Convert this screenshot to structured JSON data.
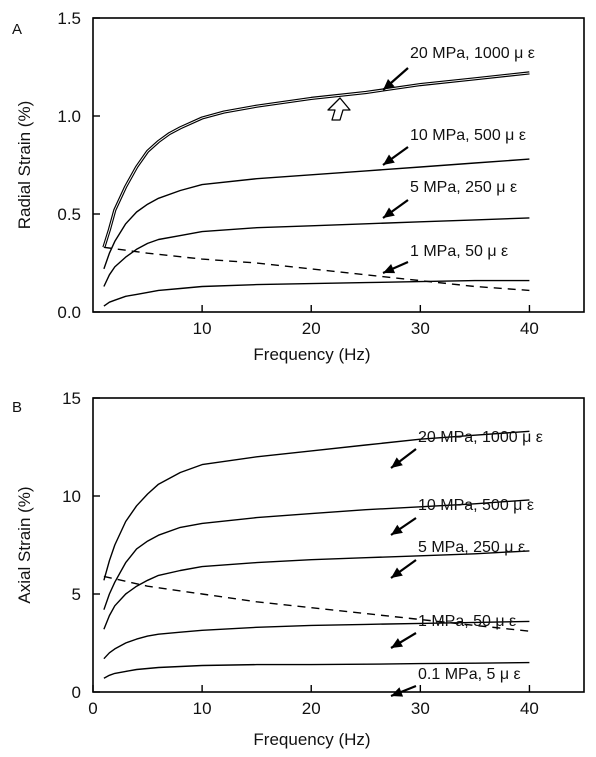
{
  "chart_data": [
    {
      "panel_label": "A",
      "type": "line",
      "xlabel": "Frequency (Hz)",
      "ylabel": "Radial Strain (%)",
      "xlim": [
        0,
        45
      ],
      "ylim": [
        0,
        1.5
      ],
      "x_ticks": [
        "10",
        "20",
        "30",
        "40"
      ],
      "x_tick_values": [
        10,
        20,
        30,
        40
      ],
      "y_ticks": [
        "0.0",
        "0.5",
        "1.0",
        "1.5"
      ],
      "y_tick_values": [
        0,
        0.5,
        1.0,
        1.5
      ],
      "grid": false,
      "series": [
        {
          "name": "20 MPa, 1000 μ ε",
          "style": "solid-bold",
          "x": [
            1,
            1.5,
            2,
            3,
            4,
            5,
            6,
            7,
            8,
            10,
            12,
            15,
            20,
            25,
            30,
            35,
            40
          ],
          "y": [
            0.33,
            0.42,
            0.52,
            0.64,
            0.74,
            0.82,
            0.87,
            0.91,
            0.94,
            0.99,
            1.02,
            1.05,
            1.09,
            1.12,
            1.16,
            1.19,
            1.22
          ]
        },
        {
          "name": "10 MPa, 500 μ ε",
          "style": "solid",
          "x": [
            1,
            1.5,
            2,
            3,
            4,
            5,
            6,
            8,
            10,
            15,
            20,
            25,
            30,
            35,
            40
          ],
          "y": [
            0.22,
            0.3,
            0.36,
            0.45,
            0.51,
            0.55,
            0.58,
            0.62,
            0.65,
            0.68,
            0.7,
            0.72,
            0.74,
            0.76,
            0.78
          ]
        },
        {
          "name": "5 MPa, 250 μ ε",
          "style": "solid",
          "x": [
            1,
            1.5,
            2,
            3,
            4,
            5,
            6,
            8,
            10,
            15,
            20,
            25,
            30,
            35,
            40
          ],
          "y": [
            0.13,
            0.19,
            0.23,
            0.28,
            0.32,
            0.35,
            0.37,
            0.39,
            0.41,
            0.43,
            0.44,
            0.45,
            0.46,
            0.47,
            0.48
          ]
        },
        {
          "name": "1 MPa, 50 μ ε",
          "style": "solid",
          "x": [
            1,
            1.5,
            2,
            3,
            4,
            5,
            6,
            8,
            10,
            15,
            20,
            25,
            30,
            35,
            40
          ],
          "y": [
            0.03,
            0.05,
            0.06,
            0.08,
            0.09,
            0.1,
            0.11,
            0.12,
            0.13,
            0.14,
            0.145,
            0.15,
            0.155,
            0.16,
            0.16
          ]
        },
        {
          "name": "",
          "style": "dashed",
          "x": [
            1,
            5,
            10,
            15,
            20,
            25,
            30,
            35,
            40
          ],
          "y": [
            0.33,
            0.3,
            0.27,
            0.25,
            0.22,
            0.19,
            0.16,
            0.13,
            0.11
          ]
        }
      ],
      "labels": [
        "20 MPa, 1000 μ ε",
        "10 MPa, 500 μ ε",
        "5 MPa, 250 μ ε",
        "1 MPa, 50 μ ε"
      ]
    },
    {
      "panel_label": "B",
      "type": "line",
      "xlabel": "Frequency (Hz)",
      "ylabel": "Axial Strain (%)",
      "xlim": [
        0,
        45
      ],
      "ylim": [
        0,
        15
      ],
      "x_ticks": [
        "0",
        "10",
        "20",
        "30",
        "40"
      ],
      "x_tick_values": [
        0,
        10,
        20,
        30,
        40
      ],
      "y_ticks": [
        "0",
        "5",
        "10",
        "15"
      ],
      "y_tick_values": [
        0,
        5,
        10,
        15
      ],
      "grid": false,
      "series": [
        {
          "name": "20 MPa, 1000 μ ε",
          "style": "solid",
          "x": [
            1,
            1.5,
            2,
            3,
            4,
            5,
            6,
            8,
            10,
            15,
            20,
            25,
            30,
            35,
            40
          ],
          "y": [
            5.7,
            6.7,
            7.5,
            8.7,
            9.5,
            10.1,
            10.6,
            11.2,
            11.6,
            12.0,
            12.3,
            12.6,
            12.9,
            13.1,
            13.3
          ]
        },
        {
          "name": "10 MPa, 500 μ ε",
          "style": "solid",
          "x": [
            1,
            1.5,
            2,
            3,
            4,
            5,
            6,
            8,
            10,
            15,
            20,
            25,
            30,
            35,
            40
          ],
          "y": [
            4.2,
            5.0,
            5.6,
            6.6,
            7.3,
            7.7,
            8.0,
            8.4,
            8.6,
            8.9,
            9.1,
            9.3,
            9.45,
            9.6,
            9.8
          ]
        },
        {
          "name": "5 MPa, 250 μ ε",
          "style": "solid",
          "x": [
            1,
            1.5,
            2,
            3,
            4,
            5,
            6,
            8,
            10,
            15,
            20,
            25,
            30,
            35,
            40
          ],
          "y": [
            3.2,
            3.9,
            4.4,
            5.0,
            5.4,
            5.7,
            5.95,
            6.2,
            6.4,
            6.6,
            6.75,
            6.85,
            6.95,
            7.05,
            7.2
          ]
        },
        {
          "name": "1 MPa, 50 μ ε",
          "style": "solid",
          "x": [
            1,
            1.5,
            2,
            3,
            4,
            5,
            6,
            8,
            10,
            15,
            20,
            25,
            30,
            35,
            40
          ],
          "y": [
            1.7,
            2.0,
            2.2,
            2.5,
            2.7,
            2.85,
            2.95,
            3.05,
            3.15,
            3.3,
            3.4,
            3.45,
            3.5,
            3.55,
            3.6
          ]
        },
        {
          "name": "0.1 MPa, 5 μ ε",
          "style": "solid",
          "x": [
            1,
            1.5,
            2,
            3,
            4,
            5,
            6,
            8,
            10,
            15,
            20,
            25,
            30,
            35,
            40
          ],
          "y": [
            0.7,
            0.85,
            0.95,
            1.05,
            1.15,
            1.2,
            1.25,
            1.3,
            1.35,
            1.4,
            1.4,
            1.42,
            1.45,
            1.47,
            1.5
          ]
        },
        {
          "name": "",
          "style": "dashed",
          "x": [
            1,
            5,
            10,
            15,
            20,
            25,
            30,
            35,
            40
          ],
          "y": [
            5.9,
            5.4,
            5.0,
            4.6,
            4.3,
            4.0,
            3.7,
            3.4,
            3.1
          ]
        }
      ],
      "labels": [
        "20 MPa, 1000 μ ε",
        "10 MPa, 500 μ ε",
        "5 MPa, 250 μ ε",
        "1 MPa, 50 μ ε",
        "0.1 MPa, 5 μ ε"
      ]
    }
  ]
}
